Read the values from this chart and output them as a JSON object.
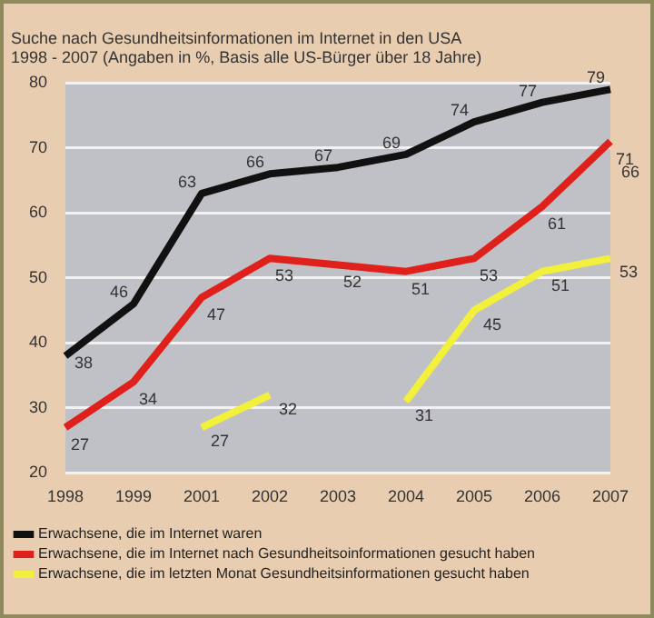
{
  "chart_data": {
    "type": "line",
    "title": [
      "Suche nach Gesundheitsinformationen im Internet in den USA",
      "1998 - 2007 (Angaben in %, Basis alle US-Bürger über 18 Jahre)"
    ],
    "categories": [
      "1998",
      "1999",
      "2001",
      "2002",
      "2003",
      "2004",
      "2005",
      "2006",
      "2007"
    ],
    "series": [
      {
        "name": "Erwachsene, die im Internet waren",
        "color": "#111111",
        "values": [
          38,
          46,
          63,
          66,
          67,
          69,
          74,
          77,
          79
        ]
      },
      {
        "name": "Erwachsene, die im Internet nach Gesundheitsoinformationen gesucht haben",
        "color": "#e0201a",
        "values": [
          27,
          34,
          47,
          53,
          52,
          51,
          53,
          61,
          71
        ]
      },
      {
        "name": "Erwachsene, die im letzten Monat Gesundheitsinformationen gesucht haben",
        "color": "#f2f03a",
        "values": [
          null,
          null,
          27,
          32,
          null,
          31,
          45,
          51,
          53
        ]
      }
    ],
    "ylim": [
      20,
      80
    ],
    "yticks": [
      20,
      30,
      40,
      50,
      60,
      70,
      80
    ],
    "grid": "y",
    "legend": "bottom",
    "marker": "none",
    "line_style": "solid",
    "data_labels": true,
    "annotations": [
      "66"
    ]
  }
}
